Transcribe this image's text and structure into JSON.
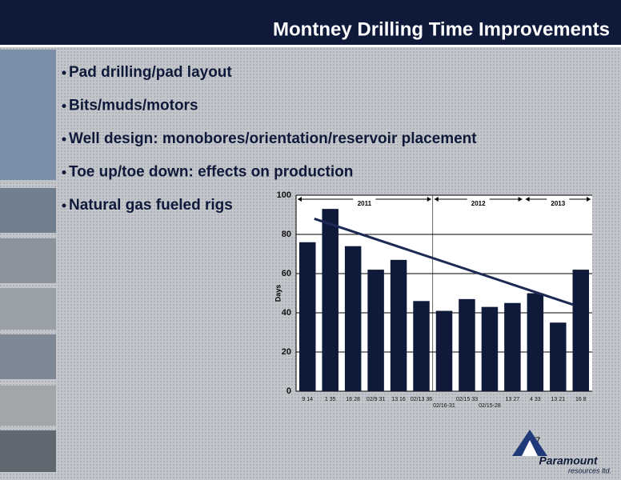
{
  "header": {
    "title": "Montney Drilling Time Improvements"
  },
  "bullets": [
    "Pad drilling/pad layout",
    "Bits/muds/motors",
    "Well design: monobores/orientation/reservoir placement",
    "Toe up/toe down: effects on production",
    "Natural gas fueled rigs"
  ],
  "footer": {
    "page": "17",
    "logo": "Paramount",
    "logo_sub": "resources ltd."
  },
  "chart_data": {
    "type": "bar",
    "ylabel": "Days",
    "categories": [
      "9 14",
      "1 35",
      "16 28",
      "02/9 31",
      "13 16",
      "02/13 36",
      "02/16-31",
      "02/15 33",
      "02/15-28",
      "13 27",
      "4 33",
      "13 21",
      "16 8"
    ],
    "values": [
      76,
      93,
      74,
      62,
      67,
      46,
      41,
      47,
      43,
      45,
      50,
      35,
      62
    ],
    "color": "#0f1a3a",
    "ylim": [
      0,
      100
    ],
    "yticks": [
      0,
      20,
      40,
      60,
      80,
      100
    ],
    "grid": true,
    "trendline": [
      88,
      44
    ],
    "periods": [
      "2011",
      "2012",
      "2013"
    ]
  }
}
